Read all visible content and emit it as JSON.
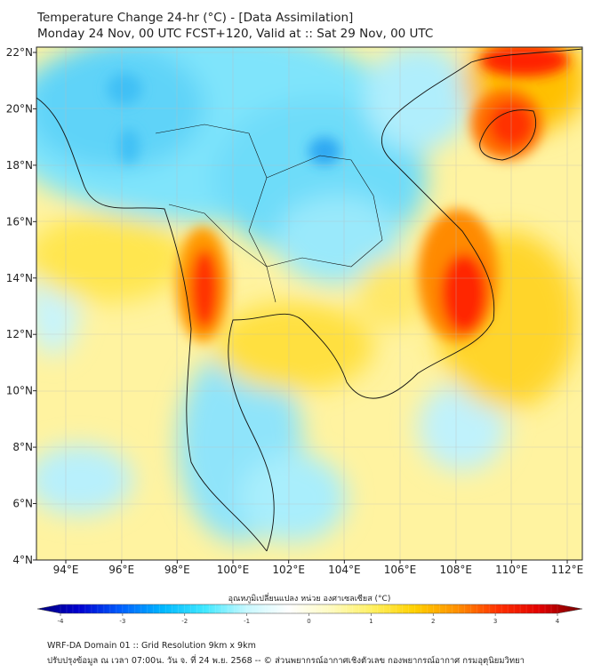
{
  "title": {
    "line1": "Temperature Change 24-hr (°C) - [Data Assimilation]",
    "line2": "Monday 24 Nov, 00 UTC FCST+120, Valid at :: Sat 29 Nov, 00 UTC"
  },
  "map": {
    "lon_range": [
      93,
      112.5
    ],
    "lat_range": [
      4,
      22.2
    ],
    "lon_ticks": [
      "94°E",
      "96°E",
      "98°E",
      "100°E",
      "102°E",
      "104°E",
      "106°E",
      "108°E",
      "110°E",
      "112°E"
    ],
    "lat_ticks": [
      "22°N",
      "20°N",
      "18°N",
      "16°N",
      "14°N",
      "12°N",
      "10°N",
      "8°N",
      "6°N",
      "4°N"
    ]
  },
  "colorbar": {
    "label": "อุณหภูมิเปลี่ยนแปลง หน่วย องศาเซลเซียส (°C)",
    "ticks": [
      "-4",
      "-3",
      "-2",
      "-1",
      "0",
      "1",
      "2",
      "3",
      "4"
    ],
    "range": [
      -4,
      4
    ],
    "colors": [
      "#00007a",
      "#0000d0",
      "#0060ff",
      "#00b8ff",
      "#40e8ff",
      "#c8f8ff",
      "#ffffff",
      "#fffbc0",
      "#fff060",
      "#ffd000",
      "#ff9000",
      "#ff3000",
      "#e00000",
      "#700000"
    ]
  },
  "footer": {
    "line1": "WRF-DA Domain 01 :: Grid Resolution 9km x 9km",
    "line2": "ปรับปรุงข้อมูล ณ เวลา 07:00น. วัน จ. ที่ 24 พ.ย. 2568 -- © ส่วนพยากรณ์อากาศเชิงตัวเลข กองพยากรณ์อากาศ กรมอุตุนิยมวิทยา"
  }
}
